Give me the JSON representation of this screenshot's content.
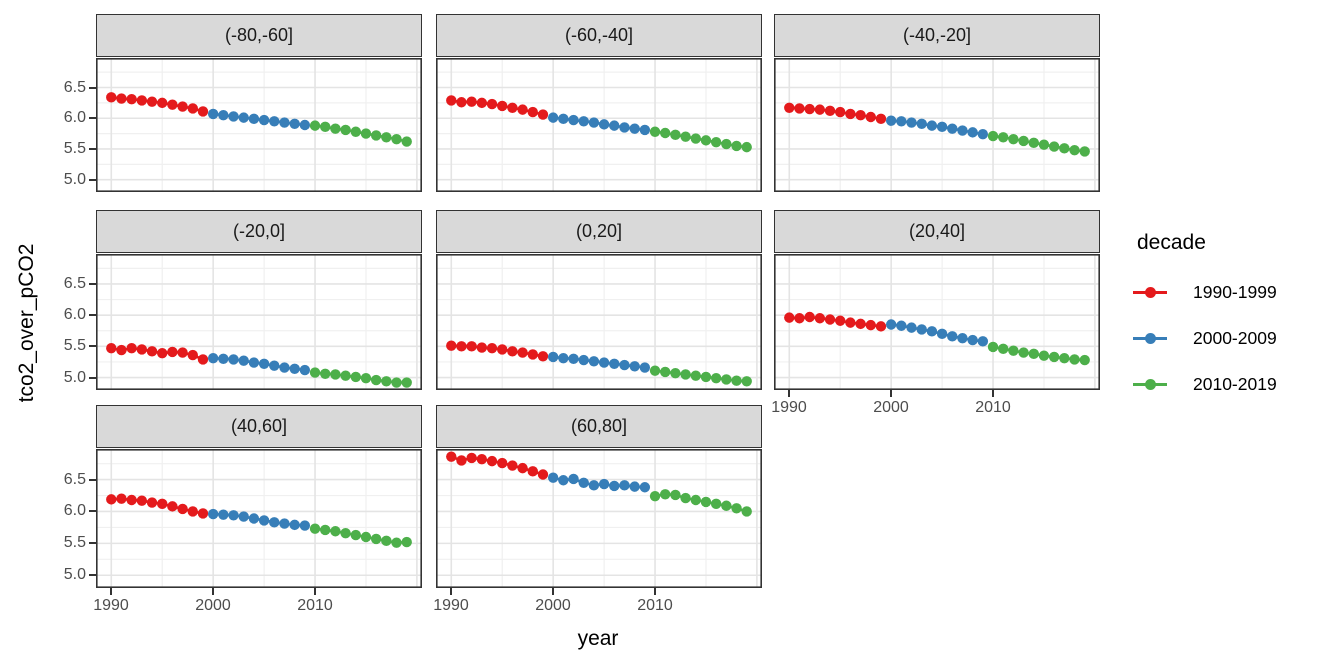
{
  "chart_data": {
    "type": "scatter",
    "title": "",
    "xlabel": "year",
    "ylabel": "tco2_over_pCO2",
    "legend_title": "decade",
    "legend_position": "right",
    "grid": "major+minor",
    "x": [
      1990,
      1991,
      1992,
      1993,
      1994,
      1995,
      1996,
      1997,
      1998,
      1999,
      2000,
      2001,
      2002,
      2003,
      2004,
      2005,
      2006,
      2007,
      2008,
      2009,
      2010,
      2011,
      2012,
      2013,
      2014,
      2015,
      2016,
      2017,
      2018,
      2019
    ],
    "xlim": [
      1988.5,
      2020.5
    ],
    "ylim": [
      4.8,
      6.98
    ],
    "x_ticks": [
      1990,
      2000,
      2010
    ],
    "x_grid_major": [
      1990,
      2000,
      2010,
      2020
    ],
    "x_grid_minor": [
      1995,
      2005,
      2015
    ],
    "y_ticks": [
      6.5,
      6.0,
      5.5,
      5.0
    ],
    "y_grid_minor": [
      6.75,
      6.25,
      5.75,
      5.25
    ],
    "series": [
      {
        "name": "1990-1999",
        "color": "#E41A1C",
        "years": [
          1990,
          1999
        ]
      },
      {
        "name": "2000-2009",
        "color": "#377EB8",
        "years": [
          2000,
          2009
        ]
      },
      {
        "name": "2010-2019",
        "color": "#4DAF4A",
        "years": [
          2010,
          2019
        ]
      }
    ],
    "facets": [
      {
        "label": "(-80,-60]",
        "values": [
          6.34,
          6.32,
          6.31,
          6.29,
          6.27,
          6.25,
          6.22,
          6.19,
          6.16,
          6.11,
          6.07,
          6.05,
          6.03,
          6.01,
          5.99,
          5.97,
          5.95,
          5.93,
          5.91,
          5.89,
          5.88,
          5.86,
          5.83,
          5.81,
          5.78,
          5.75,
          5.72,
          5.69,
          5.66,
          5.62
        ]
      },
      {
        "label": "(-60,-40]",
        "values": [
          6.29,
          6.26,
          6.27,
          6.25,
          6.23,
          6.2,
          6.17,
          6.14,
          6.1,
          6.06,
          6.01,
          5.99,
          5.97,
          5.95,
          5.93,
          5.9,
          5.88,
          5.85,
          5.83,
          5.81,
          5.78,
          5.76,
          5.73,
          5.7,
          5.67,
          5.64,
          5.61,
          5.58,
          5.55,
          5.53
        ]
      },
      {
        "label": "(-40,-20]",
        "values": [
          6.17,
          6.16,
          6.15,
          6.14,
          6.12,
          6.1,
          6.07,
          6.05,
          6.02,
          5.99,
          5.96,
          5.95,
          5.93,
          5.91,
          5.88,
          5.86,
          5.83,
          5.8,
          5.77,
          5.74,
          5.71,
          5.69,
          5.66,
          5.63,
          5.6,
          5.57,
          5.54,
          5.51,
          5.48,
          5.46
        ]
      },
      {
        "label": "(-20,0]",
        "values": [
          5.47,
          5.44,
          5.47,
          5.45,
          5.42,
          5.39,
          5.41,
          5.4,
          5.36,
          5.29,
          5.31,
          5.3,
          5.29,
          5.27,
          5.24,
          5.22,
          5.19,
          5.16,
          5.14,
          5.12,
          5.08,
          5.06,
          5.05,
          5.03,
          5.01,
          4.99,
          4.96,
          4.94,
          4.92,
          4.92
        ]
      },
      {
        "label": "(0,20]",
        "values": [
          5.51,
          5.5,
          5.5,
          5.48,
          5.47,
          5.45,
          5.42,
          5.4,
          5.37,
          5.34,
          5.33,
          5.31,
          5.3,
          5.28,
          5.26,
          5.24,
          5.22,
          5.2,
          5.18,
          5.16,
          5.11,
          5.09,
          5.07,
          5.05,
          5.03,
          5.01,
          4.99,
          4.97,
          4.95,
          4.94
        ]
      },
      {
        "label": "(20,40]",
        "values": [
          5.96,
          5.95,
          5.97,
          5.95,
          5.93,
          5.91,
          5.88,
          5.86,
          5.84,
          5.82,
          5.85,
          5.83,
          5.8,
          5.77,
          5.74,
          5.7,
          5.66,
          5.63,
          5.6,
          5.58,
          5.49,
          5.46,
          5.43,
          5.4,
          5.38,
          5.35,
          5.33,
          5.31,
          5.29,
          5.28
        ]
      },
      {
        "label": "(40,60]",
        "values": [
          6.19,
          6.2,
          6.18,
          6.17,
          6.14,
          6.12,
          6.08,
          6.04,
          6.0,
          5.97,
          5.96,
          5.95,
          5.94,
          5.92,
          5.89,
          5.86,
          5.83,
          5.81,
          5.79,
          5.78,
          5.73,
          5.71,
          5.69,
          5.66,
          5.63,
          5.6,
          5.57,
          5.54,
          5.51,
          5.52
        ]
      },
      {
        "label": "(60,80]",
        "values": [
          6.86,
          6.8,
          6.84,
          6.82,
          6.79,
          6.76,
          6.72,
          6.68,
          6.63,
          6.58,
          6.53,
          6.49,
          6.51,
          6.45,
          6.41,
          6.43,
          6.4,
          6.41,
          6.39,
          6.38,
          6.24,
          6.27,
          6.26,
          6.21,
          6.18,
          6.15,
          6.12,
          6.09,
          6.05,
          6.0
        ]
      }
    ],
    "style": {
      "strip_fill": "#d9d9d9",
      "panel_border": "#333333",
      "grid_major_color": "#e4e4e4",
      "grid_minor_color": "#f0f0f0",
      "tick_label_color": "#4d4d4d",
      "point_radius": 5.2
    }
  }
}
